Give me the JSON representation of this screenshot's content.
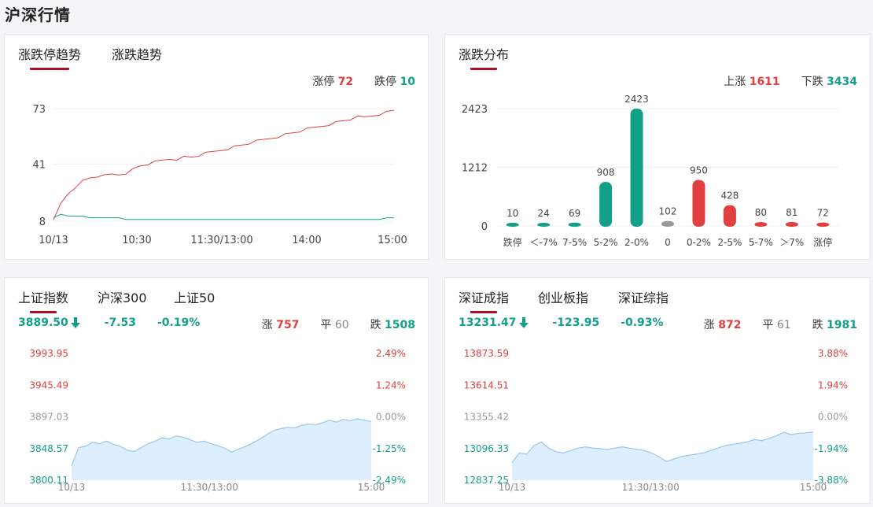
{
  "page_title": "沪深行情",
  "colors": {
    "up": "#e04040",
    "down": "#12a088",
    "flat": "#999999",
    "tab_indicator": "#b01020",
    "area_fill": "#ddeeff",
    "area_line": "#9ac6ee"
  },
  "limit_panel": {
    "tabs": [
      "涨跌停趋势",
      "涨跌趋势"
    ],
    "active_tab": 0,
    "limit_up_label": "涨停",
    "limit_up_value": "72",
    "limit_down_label": "跌停",
    "limit_down_value": "10",
    "chart_data": {
      "type": "line",
      "y_ticks": [
        "73",
        "41",
        "8"
      ],
      "ylim": [
        8,
        73
      ],
      "x_ticks": [
        "10/13",
        "10:30",
        "11:30/13:00",
        "14:00",
        "15:00"
      ],
      "series": [
        {
          "name": "涨停",
          "color": "#e04040",
          "values": [
            8,
            18,
            24,
            28,
            31,
            33,
            34,
            34,
            35,
            35,
            36,
            38,
            40,
            41,
            42,
            43,
            44,
            44,
            45,
            45,
            46,
            47,
            48,
            49,
            50,
            51,
            52,
            53,
            54,
            55,
            56,
            57,
            58,
            59,
            60,
            61,
            62,
            63,
            64,
            65,
            66,
            67,
            68,
            68,
            69,
            70,
            71,
            72
          ]
        },
        {
          "name": "跌停",
          "color": "#12a088",
          "values": [
            10,
            12,
            11,
            11,
            11,
            10,
            10,
            10,
            10,
            10,
            9,
            9,
            9,
            9,
            9,
            9,
            9,
            9,
            9,
            9,
            9,
            9,
            9,
            9,
            9,
            9,
            9,
            9,
            9,
            9,
            9,
            9,
            9,
            9,
            9,
            9,
            9,
            9,
            9,
            9,
            9,
            9,
            9,
            9,
            9,
            9,
            10,
            10
          ]
        }
      ]
    }
  },
  "dist_panel": {
    "tab": "涨跌分布",
    "up_label": "上涨",
    "up_value": "1611",
    "down_label": "下跌",
    "down_value": "3434",
    "chart_data": {
      "type": "bar",
      "y_ticks": [
        "2423",
        "1212",
        "0"
      ],
      "ylim": [
        0,
        2423
      ],
      "categories": [
        "跌停",
        "＜-7%",
        "7-5%",
        "5-2%",
        "2-0%",
        "0",
        "0-2%",
        "2-5%",
        "5-7%",
        "＞7%",
        "涨停"
      ],
      "values": [
        10,
        24,
        69,
        908,
        2423,
        102,
        950,
        428,
        80,
        81,
        72
      ],
      "bar_colors": [
        "#12a088",
        "#12a088",
        "#12a088",
        "#12a088",
        "#12a088",
        "#999999",
        "#e04040",
        "#e04040",
        "#e04040",
        "#e04040",
        "#e04040"
      ]
    }
  },
  "sh_panel": {
    "tabs": [
      "上证指数",
      "沪深300",
      "上证50"
    ],
    "active_tab": 0,
    "price": "3889.50",
    "change": "-7.53",
    "change_pct": "-0.19%",
    "up_label": "涨",
    "up_value": "757",
    "flat_label": "平",
    "flat_value": "60",
    "down_label": "跌",
    "down_value": "1508",
    "chart_data": {
      "type": "area",
      "y_ticks_left": [
        "3993.95",
        "3945.49",
        "3897.03",
        "3848.57",
        "3800.11"
      ],
      "y_ticks_right": [
        "2.49%",
        "1.24%",
        "0.00%",
        "-1.25%",
        "-2.49%"
      ],
      "ylim": [
        3800.11,
        3993.95
      ],
      "x_ticks": [
        "10/13",
        "11:30/13:00",
        "15:00"
      ],
      "values": [
        3822,
        3850,
        3852,
        3858,
        3856,
        3860,
        3855,
        3852,
        3846,
        3844,
        3850,
        3856,
        3860,
        3865,
        3863,
        3868,
        3866,
        3862,
        3858,
        3860,
        3856,
        3853,
        3849,
        3843,
        3848,
        3852,
        3857,
        3863,
        3870,
        3876,
        3879,
        3881,
        3880,
        3884,
        3886,
        3885,
        3888,
        3892,
        3889,
        3893,
        3891,
        3894,
        3892,
        3890
      ]
    }
  },
  "sz_panel": {
    "tabs": [
      "深证成指",
      "创业板指",
      "深证综指"
    ],
    "active_tab": 0,
    "price": "13231.47",
    "change": "-123.95",
    "change_pct": "-0.93%",
    "up_label": "涨",
    "up_value": "872",
    "flat_label": "平",
    "flat_value": "61",
    "down_label": "跌",
    "down_value": "1981",
    "chart_data": {
      "type": "area",
      "y_ticks_left": [
        "13873.59",
        "13614.51",
        "13355.42",
        "13096.33",
        "12837.25"
      ],
      "y_ticks_right": [
        "3.88%",
        "1.94%",
        "0.00%",
        "-1.94%",
        "-3.88%"
      ],
      "ylim": [
        12837.25,
        13873.59
      ],
      "x_ticks": [
        "10/13",
        "11:30/13:00",
        "15:00"
      ],
      "values": [
        12980,
        13060,
        13050,
        13120,
        13150,
        13100,
        13070,
        13060,
        13080,
        13100,
        13110,
        13100,
        13095,
        13090,
        13100,
        13110,
        13100,
        13090,
        13080,
        13060,
        13030,
        12990,
        13010,
        13030,
        13040,
        13050,
        13060,
        13080,
        13100,
        13120,
        13130,
        13140,
        13150,
        13170,
        13160,
        13180,
        13200,
        13230,
        13210,
        13220,
        13225,
        13231
      ]
    }
  }
}
